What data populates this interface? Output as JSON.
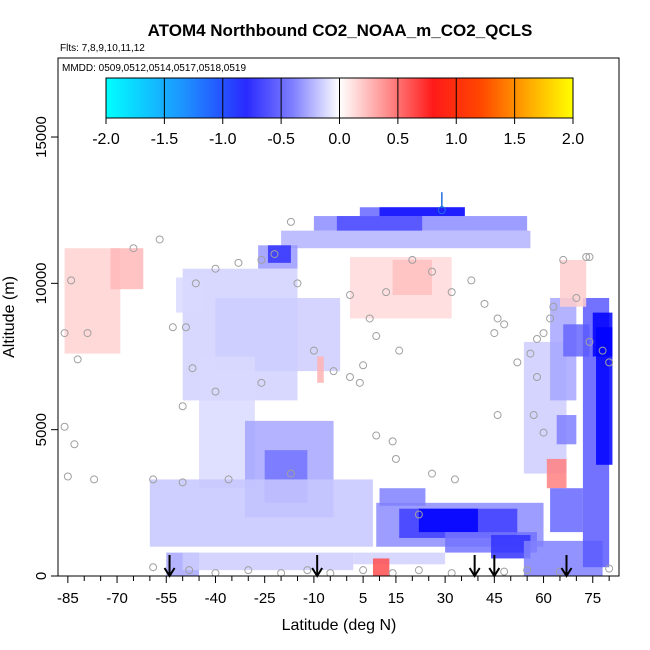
{
  "chart_data": {
    "type": "heatmap",
    "title": "ATOM4 Northbound CO2_NOAA_m_CO2_QCLS",
    "flights_label": "Flts: 7,8,9,10,11,12",
    "dates_label": "MMDD: 0509,0512,0514,0517,0518,0519",
    "xlabel": "Latitude (deg N)",
    "ylabel": "Altitude (m)",
    "xlim": [
      -88,
      83
    ],
    "ylim": [
      0,
      17700
    ],
    "x_ticks": [
      -85,
      -70,
      -55,
      -40,
      -25,
      -10,
      5,
      15,
      30,
      45,
      60,
      75
    ],
    "x_minor_ticks": [
      -80,
      -75,
      -65,
      -60,
      -50,
      -45,
      -35,
      -30,
      -20,
      -15,
      -5,
      0,
      10,
      20,
      25,
      35,
      40,
      50,
      55,
      65,
      70,
      80
    ],
    "y_ticks": [
      0,
      5000,
      10000,
      15000
    ],
    "colorbar": {
      "min": -2.0,
      "max": 2.0,
      "ticks": [
        "-2.0",
        "-1.5",
        "-1.0",
        "-0.5",
        "0.0",
        "0.5",
        "1.0",
        "1.5",
        "2.0"
      ],
      "colors": [
        "#00ffff",
        "#1e90ff",
        "#0000ff",
        "#ffffff",
        "#ff0000",
        "#ffa500",
        "#ffff00"
      ]
    },
    "arrow_latitudes": [
      -54,
      -9,
      39,
      45,
      67
    ],
    "top_marker": {
      "lat": 29,
      "alt": 12500
    },
    "anomaly_regions": [
      {
        "lat": [
          -86,
          -69
        ],
        "alt": [
          7600,
          11200
        ],
        "value": 0.18
      },
      {
        "lat": [
          -72,
          -62
        ],
        "alt": [
          9800,
          11200
        ],
        "value": 0.28
      },
      {
        "lat": [
          -20,
          56
        ],
        "alt": [
          11200,
          11800
        ],
        "value": -0.3
      },
      {
        "lat": [
          -10,
          55
        ],
        "alt": [
          11800,
          12300
        ],
        "value": -0.45
      },
      {
        "lat": [
          -3,
          23
        ],
        "alt": [
          11800,
          12300
        ],
        "value": -0.7
      },
      {
        "lat": [
          4,
          36
        ],
        "alt": [
          12300,
          12600
        ],
        "value": -0.6
      },
      {
        "lat": [
          10,
          36
        ],
        "alt": [
          12300,
          12600
        ],
        "value": -0.95
      },
      {
        "lat": [
          -27,
          -15
        ],
        "alt": [
          10500,
          11300
        ],
        "value": -0.4
      },
      {
        "lat": [
          -24,
          -17
        ],
        "alt": [
          10700,
          11300
        ],
        "value": -0.8
      },
      {
        "lat": [
          1,
          32
        ],
        "alt": [
          8800,
          10900
        ],
        "value": 0.15
      },
      {
        "lat": [
          14,
          26
        ],
        "alt": [
          9600,
          10800
        ],
        "value": 0.25
      },
      {
        "lat": [
          -50,
          -15
        ],
        "alt": [
          6000,
          10500
        ],
        "value": -0.18
      },
      {
        "lat": [
          -40,
          -2
        ],
        "alt": [
          7000,
          9500
        ],
        "value": -0.2
      },
      {
        "lat": [
          -45,
          -28
        ],
        "alt": [
          3000,
          7500
        ],
        "value": -0.15
      },
      {
        "lat": [
          -31,
          -4
        ],
        "alt": [
          2000,
          5300
        ],
        "value": -0.35
      },
      {
        "lat": [
          -25,
          -12
        ],
        "alt": [
          2500,
          4300
        ],
        "value": -0.55
      },
      {
        "lat": [
          -60,
          8
        ],
        "alt": [
          1000,
          3300
        ],
        "value": -0.22
      },
      {
        "lat": [
          -55,
          -45
        ],
        "alt": [
          0,
          800
        ],
        "value": -0.35
      },
      {
        "lat": [
          -50,
          2
        ],
        "alt": [
          200,
          800
        ],
        "value": -0.2
      },
      {
        "lat": [
          2,
          30
        ],
        "alt": [
          400,
          800
        ],
        "value": -0.18
      },
      {
        "lat": [
          9,
          60
        ],
        "alt": [
          1000,
          2500
        ],
        "value": -0.45
      },
      {
        "lat": [
          16,
          52
        ],
        "alt": [
          1300,
          2300
        ],
        "value": -0.75
      },
      {
        "lat": [
          22,
          40
        ],
        "alt": [
          1500,
          2300
        ],
        "value": -1.0
      },
      {
        "lat": [
          10,
          24
        ],
        "alt": [
          2400,
          3000
        ],
        "value": -0.5
      },
      {
        "lat": [
          30,
          58
        ],
        "alt": [
          800,
          1500
        ],
        "value": -0.55
      },
      {
        "lat": [
          44,
          56
        ],
        "alt": [
          600,
          1400
        ],
        "value": -0.8
      },
      {
        "lat": [
          54,
          67
        ],
        "alt": [
          3500,
          8000
        ],
        "value": -0.2
      },
      {
        "lat": [
          62,
          70
        ],
        "alt": [
          6000,
          9500
        ],
        "value": -0.35
      },
      {
        "lat": [
          66,
          74
        ],
        "alt": [
          7500,
          8600
        ],
        "value": -0.6
      },
      {
        "lat": [
          64,
          70
        ],
        "alt": [
          4500,
          5500
        ],
        "value": -0.5
      },
      {
        "lat": [
          61,
          67
        ],
        "alt": [
          3000,
          4000
        ],
        "value": 0.5
      },
      {
        "lat": [
          62,
          72
        ],
        "alt": [
          1500,
          3000
        ],
        "value": -0.6
      },
      {
        "lat": [
          54,
          78
        ],
        "alt": [
          0,
          1200
        ],
        "value": -0.5
      },
      {
        "lat": [
          72,
          80
        ],
        "alt": [
          300,
          9500
        ],
        "value": -0.65
      },
      {
        "lat": [
          76,
          81
        ],
        "alt": [
          3800,
          8500
        ],
        "value": -1.0
      },
      {
        "lat": [
          75,
          81
        ],
        "alt": [
          7500,
          9000
        ],
        "value": -1.1
      },
      {
        "lat": [
          -9,
          -7
        ],
        "alt": [
          6600,
          7500
        ],
        "value": 0.3
      },
      {
        "lat": [
          8,
          13
        ],
        "alt": [
          0,
          600
        ],
        "value": 0.7
      },
      {
        "lat": [
          65,
          73
        ],
        "alt": [
          9200,
          10800
        ],
        "value": 0.2
      },
      {
        "lat": [
          -52,
          -44
        ],
        "alt": [
          9000,
          10200
        ],
        "value": -0.15
      }
    ],
    "sample_points": [
      [
        -84,
        10100
      ],
      [
        -86,
        8300
      ],
      [
        -82,
        7400
      ],
      [
        -79,
        8300
      ],
      [
        -65,
        11200
      ],
      [
        -57,
        11500
      ],
      [
        -53,
        8500
      ],
      [
        -49,
        8500
      ],
      [
        -46,
        10000
      ],
      [
        -40,
        10500
      ],
      [
        -33,
        10700
      ],
      [
        -26,
        10800
      ],
      [
        -22,
        11000
      ],
      [
        -17,
        12100
      ],
      [
        -15,
        10000
      ],
      [
        -47,
        7100
      ],
      [
        -50,
        5800
      ],
      [
        -40,
        6300
      ],
      [
        -26,
        6600
      ],
      [
        -10,
        7700
      ],
      [
        -4,
        7000
      ],
      [
        1,
        6800
      ],
      [
        4,
        6600
      ],
      [
        5,
        7200
      ],
      [
        7,
        8800
      ],
      [
        1,
        9600
      ],
      [
        9,
        8200
      ],
      [
        12,
        9700
      ],
      [
        16,
        7700
      ],
      [
        20,
        10800
      ],
      [
        26,
        10400
      ],
      [
        32,
        9700
      ],
      [
        38,
        10100
      ],
      [
        42,
        9300
      ],
      [
        45,
        8300
      ],
      [
        46,
        8800
      ],
      [
        48,
        8600
      ],
      [
        52,
        7300
      ],
      [
        56,
        7600
      ],
      [
        58,
        8100
      ],
      [
        60,
        8300
      ],
      [
        62,
        8800
      ],
      [
        63,
        9200
      ],
      [
        66,
        10800
      ],
      [
        73,
        10900
      ],
      [
        74,
        10900
      ],
      [
        70,
        9500
      ],
      [
        74,
        8000
      ],
      [
        78,
        7700
      ],
      [
        80,
        7300
      ],
      [
        58,
        6800
      ],
      [
        57,
        5500
      ],
      [
        60,
        4900
      ],
      [
        46,
        5500
      ],
      [
        33,
        3300
      ],
      [
        26,
        3500
      ],
      [
        22,
        2100
      ],
      [
        14,
        4600
      ],
      [
        15,
        4000
      ],
      [
        9,
        4800
      ],
      [
        -17,
        3500
      ],
      [
        -36,
        3300
      ],
      [
        -50,
        3200
      ],
      [
        -59,
        3300
      ],
      [
        -86,
        5100
      ],
      [
        -83,
        4500
      ],
      [
        -77,
        3300
      ],
      [
        -85,
        3400
      ],
      [
        -59,
        300
      ],
      [
        -48,
        200
      ],
      [
        -40,
        100
      ],
      [
        -30,
        200
      ],
      [
        -20,
        100
      ],
      [
        -12,
        200
      ],
      [
        -5,
        100
      ],
      [
        5,
        200
      ],
      [
        14,
        100
      ],
      [
        22,
        200
      ],
      [
        32,
        100
      ],
      [
        48,
        150
      ],
      [
        55,
        200
      ],
      [
        65,
        150
      ],
      [
        80,
        250
      ]
    ]
  }
}
